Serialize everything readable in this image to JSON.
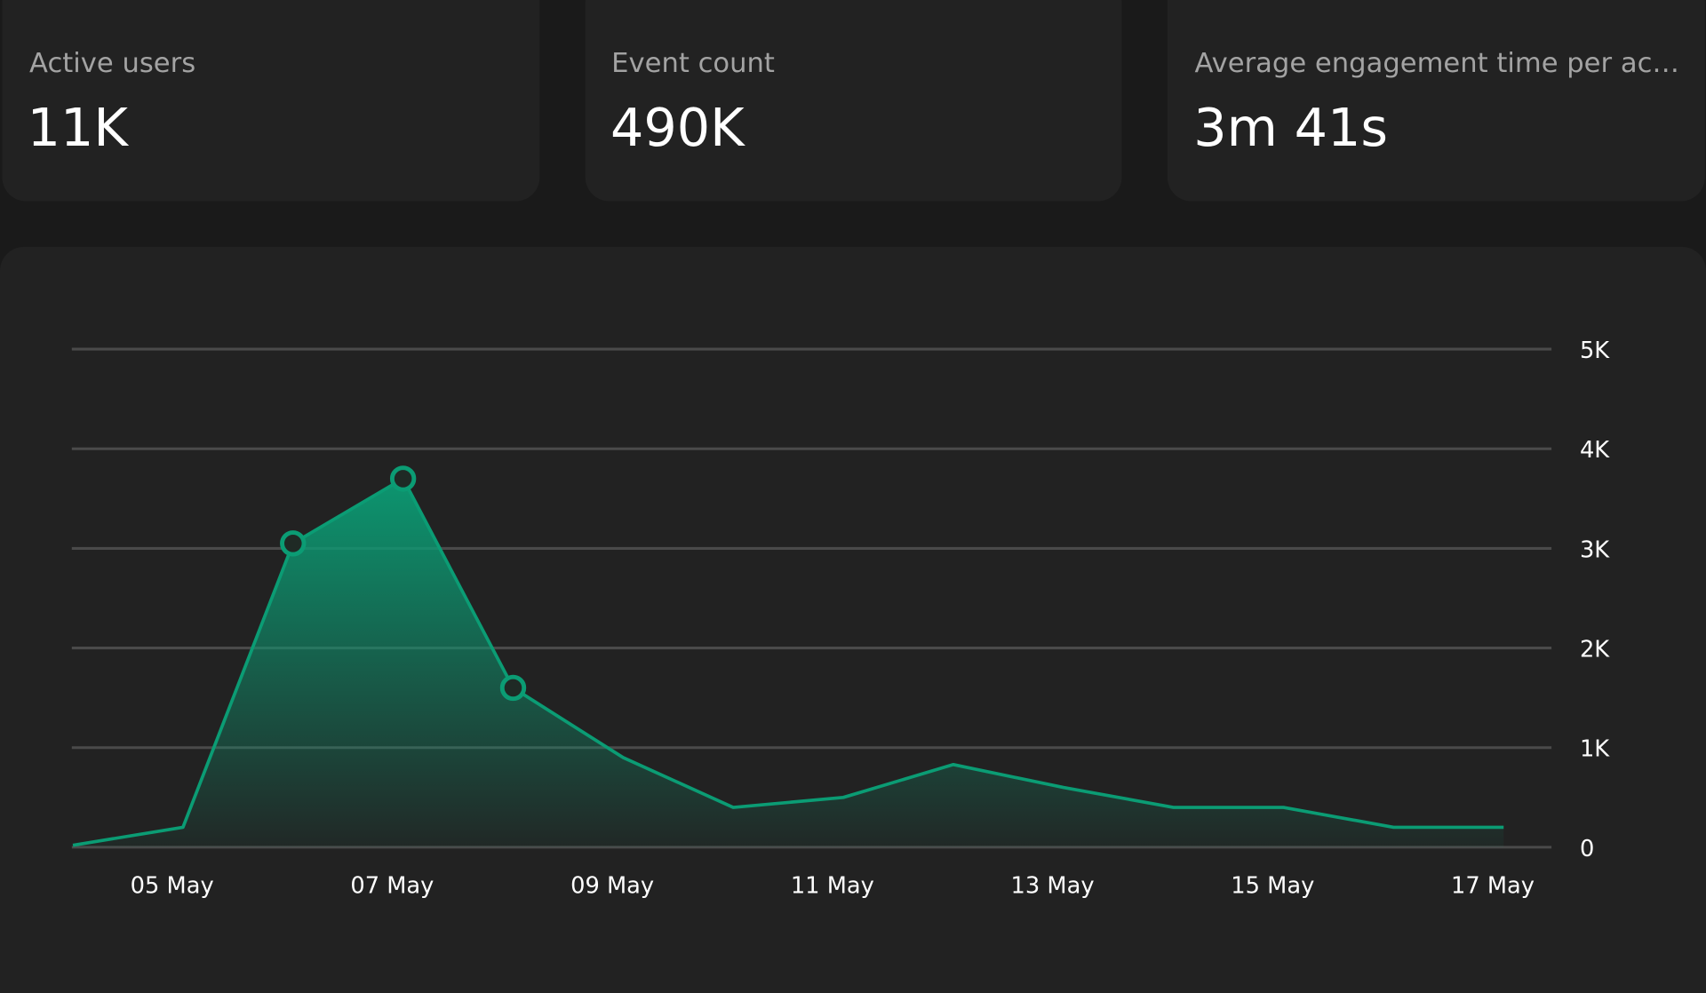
{
  "cards": [
    {
      "label": "Active users",
      "value": "11K"
    },
    {
      "label": "Event count",
      "value": "490K"
    },
    {
      "label": "Average engagement time per ac…",
      "value": "3m 41s"
    }
  ],
  "chart_data": {
    "type": "area",
    "categories": [
      null,
      "05 May",
      null,
      "07 May",
      null,
      "09 May",
      null,
      "11 May",
      null,
      "13 May",
      null,
      "15 May",
      null,
      "17 May"
    ],
    "series": [
      {
        "color": "#0b9c74",
        "values": [
          20,
          200,
          3050,
          3700,
          1600,
          900,
          400,
          500,
          830,
          600,
          400,
          400,
          200,
          200
        ],
        "markers": [
          2,
          3,
          4
        ]
      }
    ],
    "ylim": [
      0,
      5000
    ],
    "yticks": [
      0,
      {
        "value": 1000,
        "label": "1K"
      },
      {
        "value": 2000,
        "label": "2K"
      },
      {
        "value": 3000,
        "label": "3K"
      },
      {
        "value": 4000,
        "label": "4K"
      },
      {
        "value": 5000,
        "label": "5K"
      }
    ],
    "grid": true
  }
}
